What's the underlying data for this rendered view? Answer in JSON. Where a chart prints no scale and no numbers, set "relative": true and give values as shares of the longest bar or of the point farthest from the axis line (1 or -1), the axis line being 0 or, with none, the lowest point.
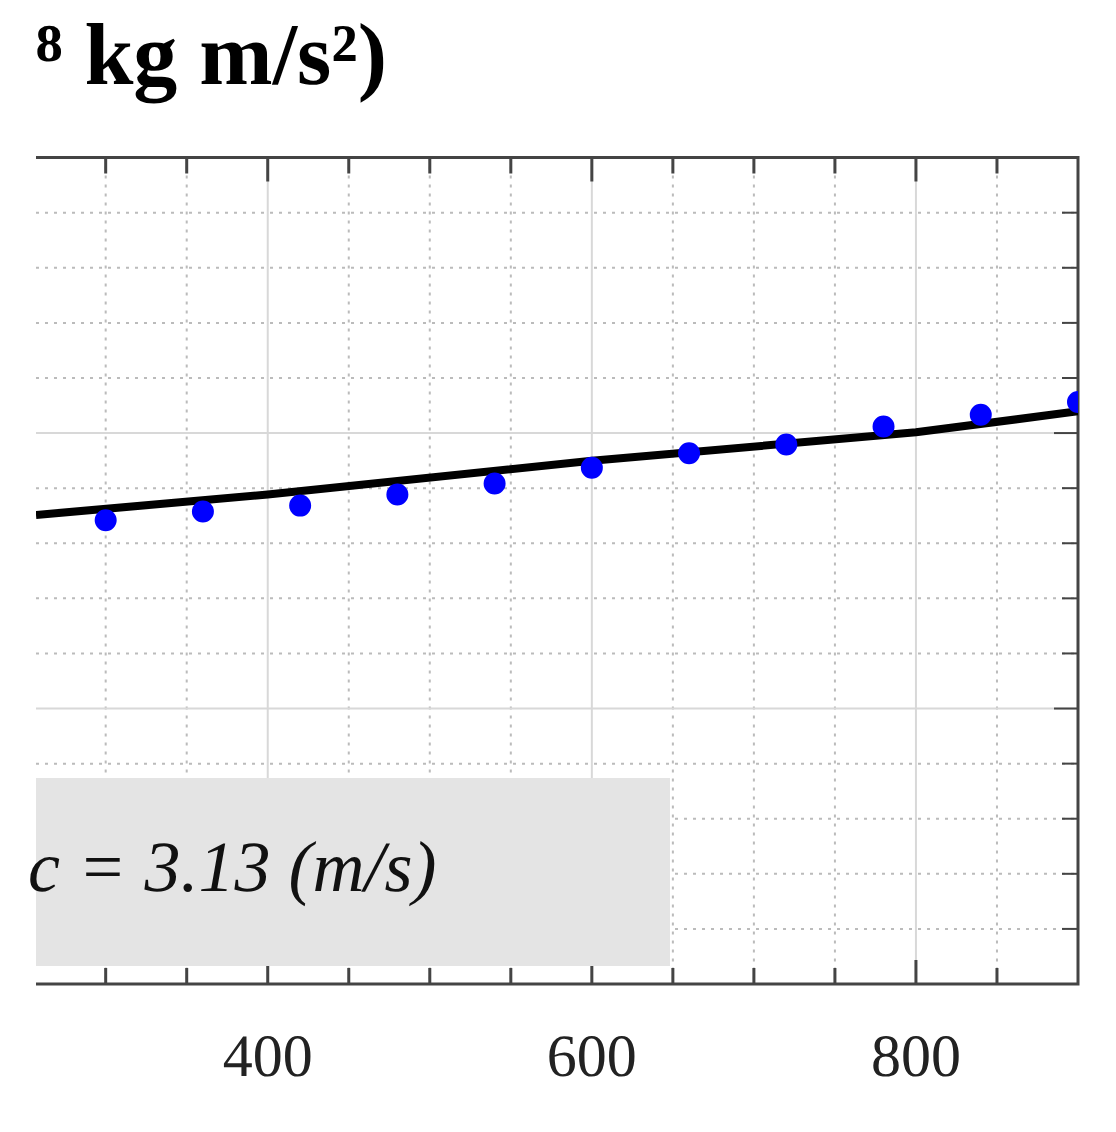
{
  "chart_data": {
    "type": "scatter",
    "title": "⁸ kg m/s²)",
    "relative": true,
    "grid": true,
    "legend": false,
    "tick_labels": "x",
    "xlim": [
      257,
      900
    ],
    "xticks": [
      {
        "value": 300,
        "label": null
      },
      {
        "value": 350,
        "label": null
      },
      400,
      {
        "value": 450,
        "label": null
      },
      {
        "value": 500,
        "label": null
      },
      {
        "value": 550,
        "label": null
      },
      600,
      {
        "value": 650,
        "label": null
      },
      {
        "value": 700,
        "label": null
      },
      {
        "value": 750,
        "label": null
      },
      800,
      {
        "value": 850,
        "label": null
      }
    ],
    "x": [
      300,
      360,
      420,
      480,
      540,
      600,
      660,
      720,
      780,
      840,
      900
    ],
    "series": [
      {
        "marker": "circle",
        "color": "#0000ff",
        "values": [
          0.797,
          0.812,
          0.822,
          0.841,
          0.86,
          0.887,
          0.912,
          0.927,
          0.958,
          0.978,
          1
        ]
      },
      {
        "type": "line",
        "color": "#000000",
        "x": [
          257,
          400,
          600,
          800,
          900
        ],
        "values": [
          0.806,
          0.841,
          0.899,
          0.948,
          0.984
        ]
      }
    ],
    "annotations": [
      "c = 3.13 (m/s)"
    ]
  }
}
